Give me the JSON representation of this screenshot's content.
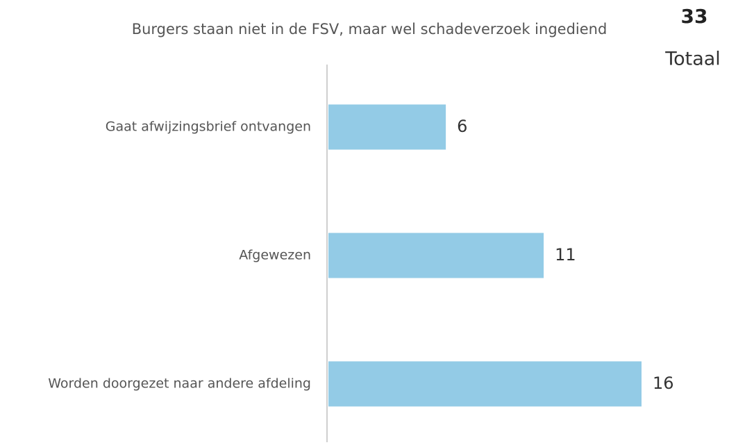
{
  "chart_data": {
    "type": "bar",
    "orientation": "horizontal",
    "title": "Burgers staan niet in de FSV, maar wel schadeverzoek ingediend",
    "total_value": 33,
    "total_label": "Totaal",
    "categories": [
      "Gaat afwijzingsbrief ontvangen",
      "Afgewezen",
      "Worden doorgezet naar andere afdeling"
    ],
    "values": [
      6,
      11,
      16
    ],
    "color": "#93cbe6"
  }
}
